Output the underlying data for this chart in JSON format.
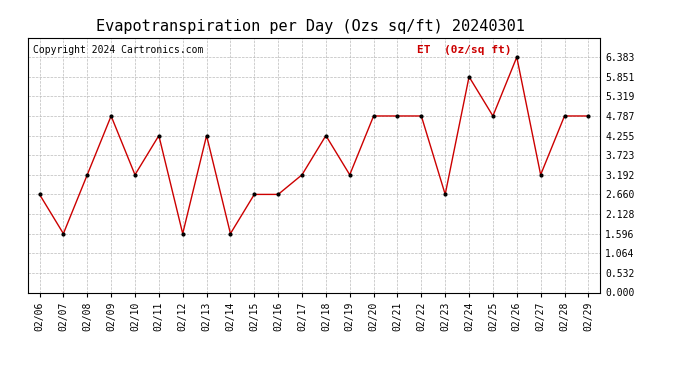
{
  "title": "Evapotranspiration per Day (Ozs sq/ft) 20240301",
  "copyright": "Copyright 2024 Cartronics.com",
  "legend_label": "ET  (0z/sq ft)",
  "dates": [
    "02/06",
    "02/07",
    "02/08",
    "02/09",
    "02/10",
    "02/11",
    "02/12",
    "02/13",
    "02/14",
    "02/15",
    "02/16",
    "02/17",
    "02/18",
    "02/19",
    "02/20",
    "02/21",
    "02/22",
    "02/23",
    "02/24",
    "02/25",
    "02/26",
    "02/27",
    "02/28",
    "02/29"
  ],
  "values": [
    2.66,
    1.596,
    3.192,
    4.787,
    3.192,
    4.255,
    1.596,
    4.255,
    1.596,
    2.66,
    2.66,
    3.192,
    4.255,
    3.192,
    4.787,
    4.787,
    4.787,
    2.66,
    5.851,
    4.787,
    6.383,
    3.192,
    4.787,
    4.787
  ],
  "ylim": [
    0.0,
    6.915
  ],
  "yticks": [
    0.0,
    0.532,
    1.064,
    1.596,
    2.128,
    2.66,
    3.192,
    3.723,
    4.255,
    4.787,
    5.319,
    5.851,
    6.383
  ],
  "line_color": "#cc0000",
  "marker_color": "#000000",
  "background_color": "#ffffff",
  "grid_color": "#bbbbbb",
  "title_fontsize": 11,
  "copyright_fontsize": 7,
  "legend_color": "#cc0000",
  "legend_fontsize": 8,
  "tick_fontsize": 7
}
